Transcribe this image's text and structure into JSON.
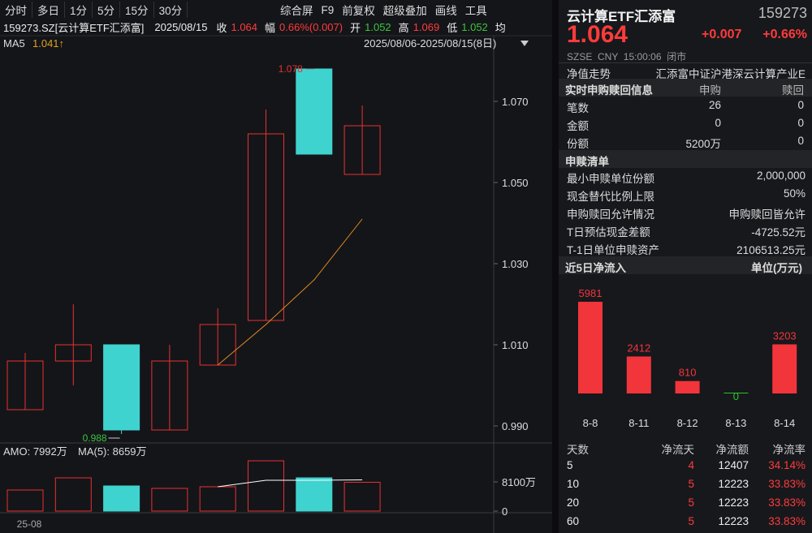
{
  "toolbar": {
    "periods": [
      "分时",
      "多日",
      "1分",
      "5分",
      "15分",
      "30分"
    ],
    "tools": [
      "综合屏",
      "F9",
      "前复权",
      "超级叠加",
      "画线",
      "工具"
    ]
  },
  "quote_bar": {
    "symbol": "159273.SZ[云计算ETF汇添富]",
    "date": "2025/08/15",
    "close_label": "收",
    "close": "1.064",
    "change_label": "幅",
    "change": "0.66%(0.007)",
    "open_label": "开",
    "open": "1.052",
    "high_label": "高",
    "high": "1.069",
    "low_label": "低",
    "low": "1.052",
    "avg_label": "均"
  },
  "chart_data": [
    {
      "type": "candlestick",
      "ma_name": "MA5",
      "ma_label": "1.041↑",
      "date_range": "2025/08/06-2025/08/15(8日)",
      "x_tick_label": "25-08",
      "open": [
        0.994,
        1.006,
        1.01,
        0.989,
        1.005,
        1.016,
        1.078,
        1.052
      ],
      "high": [
        1.008,
        1.02,
        1.01,
        1.01,
        1.019,
        1.068,
        1.078,
        1.069
      ],
      "low": [
        0.994,
        1.0,
        0.988,
        0.989,
        1.005,
        1.016,
        1.057,
        1.052
      ],
      "close": [
        1.006,
        1.01,
        0.989,
        1.006,
        1.015,
        1.062,
        1.057,
        1.064
      ],
      "ma": [
        null,
        null,
        null,
        null,
        1.005,
        1.015,
        1.026,
        1.041
      ],
      "up_color": "#e8312f",
      "down_color": "#3fd3cf",
      "ma_color": "#e08a1e",
      "ylim": [
        0.986,
        1.082
      ],
      "yticks": [
        {
          "value": 1.07,
          "label": "1.070"
        },
        {
          "value": 1.05,
          "label": "1.050"
        },
        {
          "value": 1.03,
          "label": "1.030"
        },
        {
          "value": 1.01,
          "label": "1.010"
        },
        {
          "value": 0.99,
          "label": "0.990"
        }
      ],
      "volume_title": "AMO: 7992万",
      "volume_ma_title": "MA(5): 8659万",
      "volume": [
        5850,
        9225,
        6975,
        6300,
        6750,
        13950,
        9225,
        7992
      ],
      "volume_ma": [
        null,
        null,
        null,
        null,
        6750,
        8550,
        8550,
        8659
      ],
      "volume_color": "#ffffff",
      "volume_ylim": [
        0,
        14625
      ],
      "volume_yticks": [
        {
          "value": 8100,
          "label": "8100万"
        },
        0
      ]
    },
    {
      "type": "bar",
      "title": "近5日净流入",
      "unit": "单位(万元)",
      "categories": [
        "8-8",
        "8-11",
        "8-12",
        "8-13",
        "8-14"
      ],
      "values": [
        5981,
        2412,
        810,
        0,
        3203
      ],
      "color": "#f2353b",
      "zero_color": "#2fc02f"
    }
  ],
  "fund": {
    "name": "云计算ETF汇添富",
    "code": "159273",
    "price": "1.064",
    "change": "+0.007",
    "change_pct": "+0.66%",
    "status": "SZSE  CNY  15:00:06  闭市",
    "nav_label": "净值走势",
    "nav_text": "汇添富中证沪港深云计算产业E"
  },
  "realtime": {
    "title": "实时申购赎回信息",
    "columns": [
      "申购",
      "赎回"
    ],
    "rows": [
      [
        "笔数",
        "26",
        "0"
      ],
      [
        "金额",
        "0",
        "0"
      ],
      [
        "份额",
        "5200万",
        "0"
      ]
    ]
  },
  "list": {
    "title": "申赎清单",
    "rows": [
      [
        "最小申赎单位份额",
        "2,000,000"
      ],
      [
        "现金替代比例上限",
        "50%"
      ],
      [
        "申购赎回允许情况",
        "申购赎回皆允许"
      ],
      [
        "T日预估现金差额",
        "-4725.52元"
      ],
      [
        "T-1日单位申赎资产",
        "2106513.25元"
      ]
    ]
  },
  "flow_table": {
    "columns": [
      "天数",
      "净流天",
      "净流额",
      "净流率"
    ],
    "rows": [
      [
        "5",
        "4",
        "12407",
        "34.14%"
      ],
      [
        "10",
        "5",
        "12223",
        "33.83%"
      ],
      [
        "20",
        "5",
        "12223",
        "33.83%"
      ],
      [
        "60",
        "5",
        "12223",
        "33.83%"
      ]
    ]
  }
}
